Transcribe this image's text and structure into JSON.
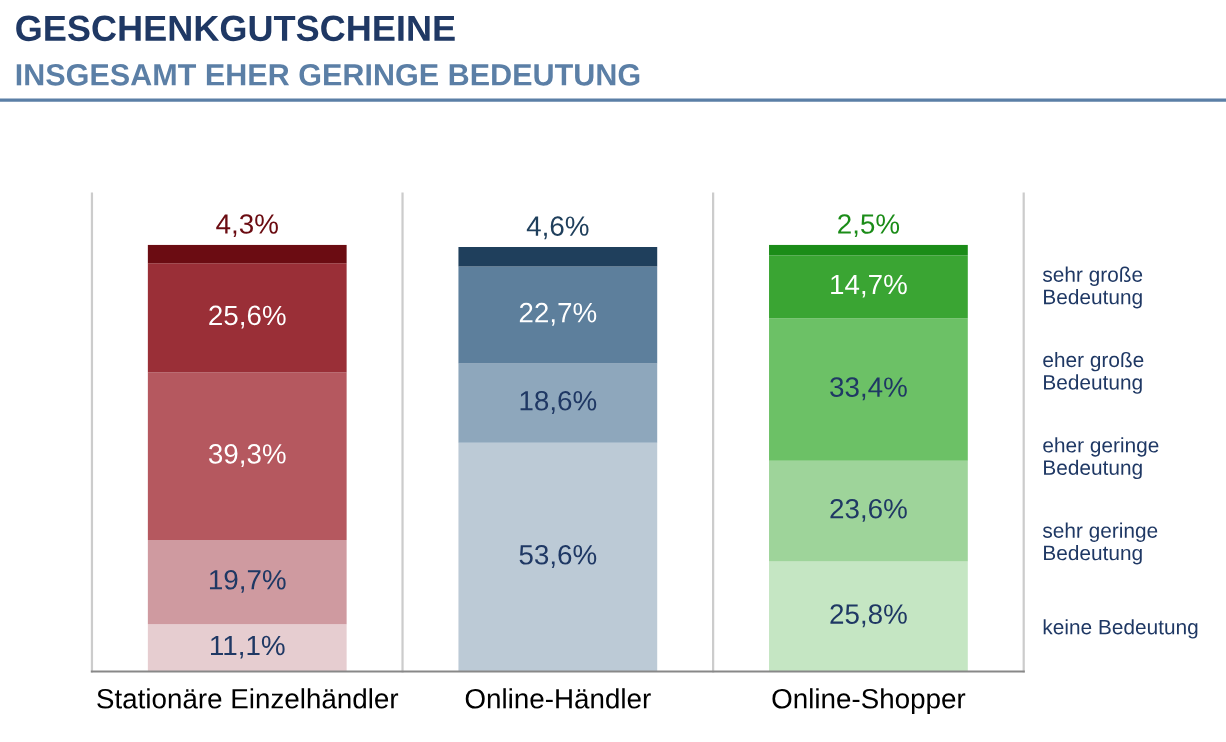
{
  "chart_data": {
    "type": "bar",
    "stacked": true,
    "title": "GESCHENKGUTSCHEINE",
    "subtitle": "INSGESAMT EHER GERINGE BEDEUTUNG",
    "categories": [
      "Stationäre Einzelhändler",
      "Online-Händler",
      "Online-Shopper"
    ],
    "ylim": [
      0,
      100
    ],
    "tick_labels": "x",
    "grid": "x",
    "series": [
      {
        "name": "keine Bedeutung",
        "colors": [
          "#e6cdd0",
          "#bccad6",
          "#c5e6c3"
        ],
        "values": [
          11.1,
          53.6,
          25.8
        ],
        "value_labels": [
          "11,1%",
          "53,6%",
          "25,8%"
        ]
      },
      {
        "name": "sehr geringe Bedeutung",
        "colors": [
          "#cf9aa0",
          "#bccad6",
          "#9ed49a"
        ],
        "values": [
          19.7,
          null,
          23.6
        ],
        "value_labels": [
          "19,7%",
          null,
          "23,6%"
        ]
      },
      {
        "name": "eher geringe Bedeutung",
        "colors": [
          "#b5585f",
          "#8ea7bc",
          "#6cc166"
        ],
        "values": [
          39.3,
          18.6,
          33.4
        ],
        "value_labels": [
          "39,3%",
          "18,6%",
          "33,4%"
        ]
      },
      {
        "name": "eher große Bedeutung",
        "colors": [
          "#9a2f37",
          "#5d7f9c",
          "#3aa533"
        ],
        "values": [
          25.6,
          22.7,
          14.7
        ],
        "value_labels": [
          "25,6%",
          "22,7%",
          "14,7%"
        ]
      },
      {
        "name": "sehr große Bedeutung",
        "colors": [
          "#6b0c12",
          "#1f3f5c",
          "#1b8c18"
        ],
        "values": [
          4.3,
          4.6,
          2.5
        ],
        "value_labels": [
          "4,3%",
          "4,6%",
          "2,5%"
        ]
      }
    ]
  }
}
